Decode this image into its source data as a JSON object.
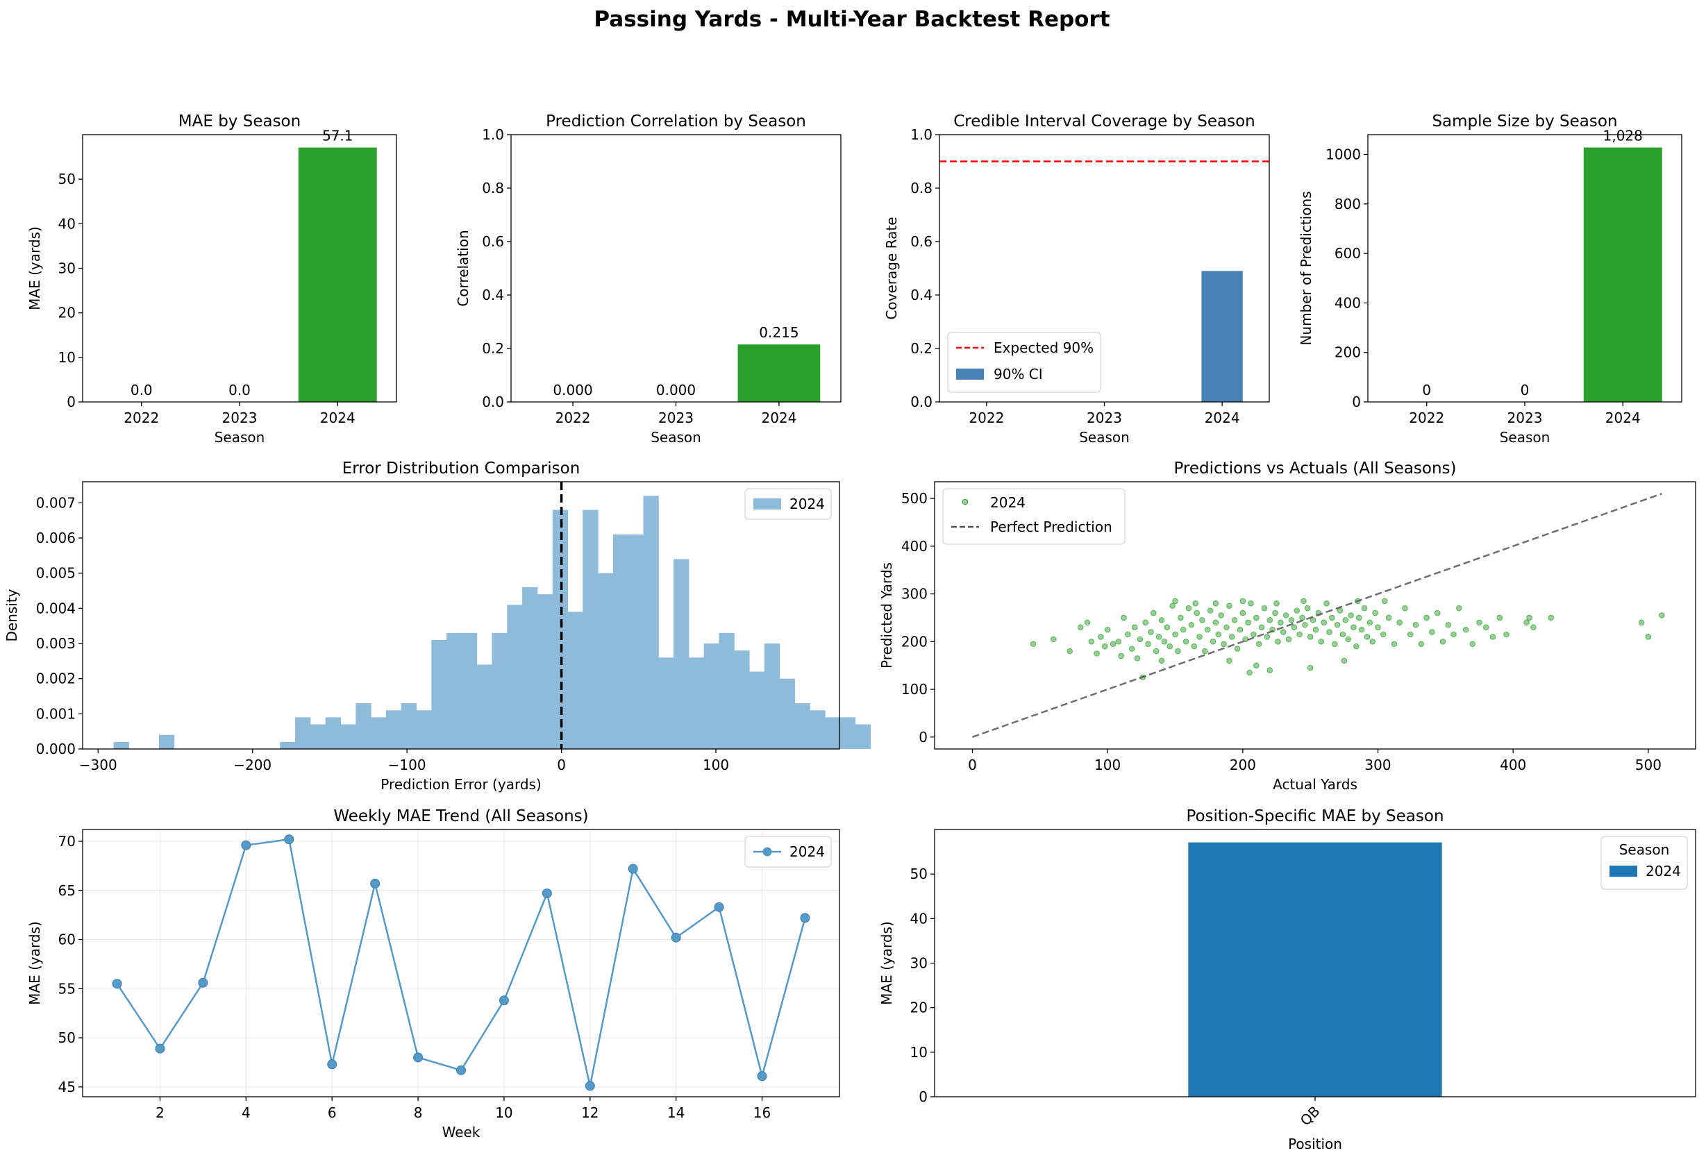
{
  "page": {
    "title": "Passing Yards - Multi-Year Backtest Report"
  },
  "colors": {
    "green": "#2ca02c",
    "steel_blue": "#4682b4",
    "hist_blue": "#8fbbda",
    "line_blue": "#5599c7",
    "bar_blue": "#1f77b4",
    "red": "#ff0000",
    "gray": "#808080"
  },
  "chart_data": [
    {
      "id": "mae",
      "type": "bar",
      "title": "MAE by Season",
      "xlabel": "Season",
      "ylabel": "MAE (yards)",
      "categories": [
        "2022",
        "2023",
        "2024"
      ],
      "values": [
        0.0,
        0.0,
        57.1
      ],
      "data_labels": [
        "0.0",
        "0.0",
        "57.1"
      ],
      "ylim": [
        0,
        60
      ],
      "yticks": [
        0,
        10,
        20,
        30,
        40,
        50
      ],
      "color": "#2ca02c",
      "grid": false
    },
    {
      "id": "corr",
      "type": "bar",
      "title": "Prediction Correlation by Season",
      "xlabel": "Season",
      "ylabel": "Correlation",
      "categories": [
        "2022",
        "2023",
        "2024"
      ],
      "values": [
        0.0,
        0.0,
        0.215
      ],
      "data_labels": [
        "0.000",
        "0.000",
        "0.215"
      ],
      "ylim": [
        0,
        1
      ],
      "yticks": [
        0.0,
        0.2,
        0.4,
        0.6,
        0.8,
        1.0
      ],
      "yticklabels": [
        "0.0",
        "0.2",
        "0.4",
        "0.6",
        "0.8",
        "1.0"
      ],
      "color": "#2ca02c",
      "grid": false
    },
    {
      "id": "coverage",
      "type": "bar",
      "title": "Credible Interval Coverage by Season",
      "xlabel": "Season",
      "ylabel": "Coverage Rate",
      "categories": [
        "2022",
        "2023",
        "2024"
      ],
      "values": [
        0.0,
        0.0,
        0.49
      ],
      "ylim": [
        0,
        1
      ],
      "yticks": [
        0.0,
        0.2,
        0.4,
        0.6,
        0.8,
        1.0
      ],
      "yticklabels": [
        "0.0",
        "0.2",
        "0.4",
        "0.6",
        "0.8",
        "1.0"
      ],
      "color": "#4682b4",
      "reference_line": {
        "y": 0.9,
        "label": "Expected 90%",
        "color": "#ff0000"
      },
      "legend": {
        "position": "lower-left",
        "entries": [
          "Expected 90%",
          "90% CI"
        ]
      },
      "grid": false
    },
    {
      "id": "samples",
      "type": "bar",
      "title": "Sample Size by Season",
      "xlabel": "Season",
      "ylabel": "Number of Predictions",
      "categories": [
        "2022",
        "2023",
        "2024"
      ],
      "values": [
        0,
        0,
        1028
      ],
      "data_labels": [
        "0",
        "0",
        "1,028"
      ],
      "ylim": [
        0,
        1080
      ],
      "yticks": [
        0,
        200,
        400,
        600,
        800,
        1000
      ],
      "color": "#2ca02c",
      "grid": false
    },
    {
      "id": "hist",
      "type": "bar",
      "title": "Error Distribution Comparison",
      "xlabel": "Prediction Error (yards)",
      "ylabel": "Density",
      "bin_start": -290,
      "bin_width": 9.8,
      "densities": [
        0.0002,
        0,
        0,
        0.0004,
        0,
        0,
        0,
        0,
        0,
        0,
        0,
        0.0002,
        0.0009,
        0.0007,
        0.0009,
        0.0007,
        0.0013,
        0.0009,
        0.0011,
        0.0013,
        0.0011,
        0.0031,
        0.0033,
        0.0033,
        0.0024,
        0.0033,
        0.0041,
        0.0046,
        0.0044,
        0.0068,
        0.0039,
        0.0068,
        0.005,
        0.0061,
        0.0061,
        0.0072,
        0.0026,
        0.0054,
        0.0026,
        0.003,
        0.0033,
        0.0028,
        0.0022,
        0.003,
        0.002,
        0.0013,
        0.0011,
        0.0009,
        0.0009,
        0.0007
      ],
      "xlim": [
        -310,
        180
      ],
      "ylim": [
        0,
        0.0076
      ],
      "xticks": [
        -300,
        -200,
        -100,
        0,
        100
      ],
      "xticklabels": [
        "−300",
        "−200",
        "−100",
        "0",
        "100"
      ],
      "yticks": [
        0,
        0.001,
        0.002,
        0.003,
        0.004,
        0.005,
        0.006,
        0.007
      ],
      "yticklabels": [
        "0.000",
        "0.001",
        "0.002",
        "0.003",
        "0.004",
        "0.005",
        "0.006",
        "0.007"
      ],
      "reference_line": {
        "x": 0
      },
      "series": [
        {
          "name": "2024"
        }
      ],
      "legend": {
        "position": "top-right"
      },
      "color": "#8fbbda",
      "grid": false
    },
    {
      "id": "scatter",
      "type": "scatter",
      "title": "Predictions vs Actuals (All Seasons)",
      "xlabel": "Actual Yards",
      "ylabel": "Predicted Yards",
      "xlim": [
        -28,
        535
      ],
      "ylim": [
        -25,
        535
      ],
      "xticks": [
        0,
        100,
        200,
        300,
        400,
        500
      ],
      "yticks": [
        0,
        100,
        200,
        300,
        400,
        500
      ],
      "series": [
        {
          "name": "2024",
          "color": "#2ca02c"
        }
      ],
      "reference_line": {
        "label": "Perfect Prediction",
        "from": [
          0,
          0
        ],
        "to": [
          510,
          510
        ]
      },
      "legend": {
        "position": "top-left",
        "entries": [
          "2024",
          "Perfect Prediction"
        ]
      },
      "points": [
        [
          45,
          195
        ],
        [
          60,
          205
        ],
        [
          72,
          180
        ],
        [
          80,
          230
        ],
        [
          85,
          240
        ],
        [
          88,
          200
        ],
        [
          92,
          175
        ],
        [
          95,
          210
        ],
        [
          98,
          190
        ],
        [
          100,
          225
        ],
        [
          104,
          195
        ],
        [
          108,
          200
        ],
        [
          110,
          170
        ],
        [
          112,
          250
        ],
        [
          115,
          215
        ],
        [
          118,
          185
        ],
        [
          120,
          230
        ],
        [
          122,
          165
        ],
        [
          124,
          205
        ],
        [
          126,
          125
        ],
        [
          128,
          240
        ],
        [
          130,
          195
        ],
        [
          132,
          220
        ],
        [
          134,
          260
        ],
        [
          136,
          180
        ],
        [
          138,
          210
        ],
        [
          140,
          245
        ],
        [
          142,
          200
        ],
        [
          144,
          230
        ],
        [
          146,
          190
        ],
        [
          148,
          275
        ],
        [
          150,
          215
        ],
        [
          152,
          180
        ],
        [
          154,
          250
        ],
        [
          156,
          225
        ],
        [
          158,
          200
        ],
        [
          160,
          270
        ],
        [
          162,
          235
        ],
        [
          164,
          190
        ],
        [
          166,
          260
        ],
        [
          168,
          210
        ],
        [
          170,
          245
        ],
        [
          172,
          180
        ],
        [
          174,
          225
        ],
        [
          176,
          265
        ],
        [
          178,
          200
        ],
        [
          180,
          240
        ],
        [
          182,
          215
        ],
        [
          184,
          255
        ],
        [
          186,
          195
        ],
        [
          188,
          230
        ],
        [
          190,
          275
        ],
        [
          192,
          210
        ],
        [
          194,
          245
        ],
        [
          196,
          185
        ],
        [
          198,
          225
        ],
        [
          200,
          260
        ],
        [
          202,
          205
        ],
        [
          204,
          240
        ],
        [
          206,
          280
        ],
        [
          208,
          215
        ],
        [
          210,
          250
        ],
        [
          212,
          195
        ],
        [
          214,
          230
        ],
        [
          216,
          270
        ],
        [
          218,
          210
        ],
        [
          220,
          245
        ],
        [
          222,
          225
        ],
        [
          224,
          260
        ],
        [
          226,
          200
        ],
        [
          228,
          240
        ],
        [
          230,
          220
        ],
        [
          232,
          255
        ],
        [
          234,
          205
        ],
        [
          236,
          245
        ],
        [
          238,
          230
        ],
        [
          240,
          265
        ],
        [
          242,
          215
        ],
        [
          244,
          250
        ],
        [
          246,
          235
        ],
        [
          248,
          270
        ],
        [
          250,
          210
        ],
        [
          252,
          245
        ],
        [
          254,
          225
        ],
        [
          256,
          260
        ],
        [
          258,
          200
        ],
        [
          260,
          240
        ],
        [
          262,
          280
        ],
        [
          264,
          220
        ],
        [
          266,
          250
        ],
        [
          268,
          195
        ],
        [
          270,
          235
        ],
        [
          272,
          265
        ],
        [
          274,
          215
        ],
        [
          276,
          245
        ],
        [
          278,
          205
        ],
        [
          280,
          255
        ],
        [
          282,
          230
        ],
        [
          284,
          190
        ],
        [
          286,
          250
        ],
        [
          288,
          225
        ],
        [
          290,
          270
        ],
        [
          292,
          210
        ],
        [
          294,
          240
        ],
        [
          296,
          200
        ],
        [
          298,
          260
        ],
        [
          300,
          230
        ],
        [
          304,
          215
        ],
        [
          308,
          250
        ],
        [
          312,
          195
        ],
        [
          316,
          240
        ],
        [
          320,
          270
        ],
        [
          324,
          215
        ],
        [
          328,
          235
        ],
        [
          332,
          195
        ],
        [
          336,
          250
        ],
        [
          340,
          220
        ],
        [
          344,
          260
        ],
        [
          348,
          200
        ],
        [
          352,
          235
        ],
        [
          356,
          215
        ],
        [
          360,
          270
        ],
        [
          365,
          225
        ],
        [
          370,
          195
        ],
        [
          375,
          240
        ],
        [
          380,
          230
        ],
        [
          385,
          210
        ],
        [
          390,
          250
        ],
        [
          395,
          215
        ],
        [
          410,
          240
        ],
        [
          412,
          250
        ],
        [
          415,
          230
        ],
        [
          428,
          250
        ],
        [
          495,
          240
        ],
        [
          500,
          210
        ],
        [
          510,
          255
        ],
        [
          150,
          285
        ],
        [
          165,
          280
        ],
        [
          200,
          285
        ],
        [
          225,
          280
        ],
        [
          245,
          285
        ],
        [
          285,
          285
        ],
        [
          305,
          285
        ],
        [
          180,
          280
        ],
        [
          210,
          150
        ],
        [
          220,
          140
        ],
        [
          205,
          135
        ],
        [
          190,
          160
        ],
        [
          250,
          145
        ],
        [
          275,
          160
        ],
        [
          140,
          160
        ]
      ]
    },
    {
      "id": "weekly",
      "type": "line",
      "title": "Weekly MAE Trend (All Seasons)",
      "xlabel": "Week",
      "ylabel": "MAE (yards)",
      "x": [
        1,
        2,
        3,
        4,
        5,
        6,
        7,
        8,
        9,
        10,
        11,
        12,
        13,
        14,
        15,
        16,
        17
      ],
      "series": [
        {
          "name": "2024",
          "values": [
            55.5,
            48.9,
            55.6,
            69.6,
            70.2,
            47.3,
            65.7,
            48.0,
            46.7,
            53.8,
            64.7,
            45.1,
            67.2,
            60.2,
            63.3,
            46.1,
            62.2
          ],
          "color": "#5599c7"
        }
      ],
      "xlim": [
        0.2,
        17.8
      ],
      "ylim": [
        44,
        71.2
      ],
      "xticks": [
        2,
        4,
        6,
        8,
        10,
        12,
        14,
        16
      ],
      "yticks": [
        45,
        50,
        55,
        60,
        65,
        70
      ],
      "legend": {
        "position": "top-right"
      },
      "grid": true
    },
    {
      "id": "position",
      "type": "bar",
      "title": "Position-Specific MAE by Season",
      "xlabel": "Position",
      "ylabel": "MAE (yards)",
      "categories": [
        "QB"
      ],
      "series": [
        {
          "name": "2024",
          "values": [
            57.1
          ],
          "color": "#1f77b4"
        }
      ],
      "ylim": [
        0,
        60
      ],
      "yticks": [
        0,
        10,
        20,
        30,
        40,
        50
      ],
      "legend": {
        "title": "Season",
        "position": "top-right"
      },
      "grid": false
    }
  ]
}
